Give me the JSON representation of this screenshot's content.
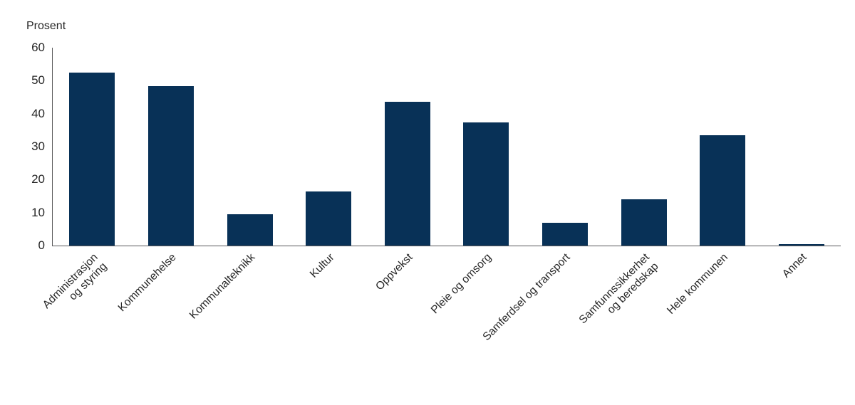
{
  "chart_data": {
    "type": "bar",
    "title": "",
    "ylabel": "Prosent",
    "xlabel": "",
    "ylim": [
      0,
      60
    ],
    "yticks": [
      0,
      10,
      20,
      30,
      40,
      50,
      60
    ],
    "grid": false,
    "legend": null,
    "bar_color": "#083157",
    "axis_color": "#58585a",
    "text_color": "#262626",
    "categories": [
      "Administrasjon og styring",
      "Kommunehelse",
      "Kommunalteknikk",
      "Kultur",
      "Oppvekst",
      "Pleie og omsorg",
      "Samferdsel og transport",
      "Samfunnssikkerhet og beredskap",
      "Hele kommunen",
      "Annet"
    ],
    "category_lines": [
      [
        "Administrasjon",
        "og styring"
      ],
      [
        "Kommunehelse"
      ],
      [
        "Kommunalteknikk"
      ],
      [
        "Kultur"
      ],
      [
        "Oppvekst"
      ],
      [
        "Pleie og omsorg"
      ],
      [
        "Samferdsel og transport"
      ],
      [
        "Samfunnssikkerhet",
        "og beredskap"
      ],
      [
        "Hele kommunen"
      ],
      [
        "Annet"
      ]
    ],
    "values": [
      52.4,
      48.4,
      9.6,
      16.3,
      43.6,
      37.4,
      7.0,
      14.1,
      33.4,
      0.5
    ]
  }
}
